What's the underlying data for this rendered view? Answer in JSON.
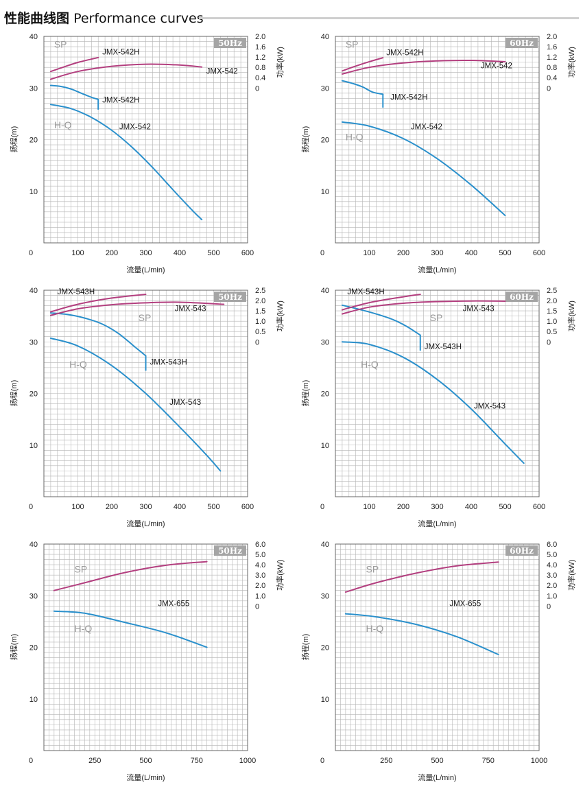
{
  "header": {
    "title_cn": "性能曲线图",
    "title_en": "Performance curves"
  },
  "colors": {
    "head": "#2a90cc",
    "power": "#b33f7f",
    "grid": "#b5b5b5",
    "frame": "#666666",
    "badge": "#a5a5a5"
  },
  "chart_data": [
    {
      "type": "line",
      "frequency": "50Hz",
      "xlabel": "流量(L/min)",
      "ylabel": "扬程(m)",
      "y2label": "功率(kW)",
      "xlim": [
        0,
        600
      ],
      "x_ticks": [
        0,
        100,
        200,
        300,
        400,
        500,
        600
      ],
      "ylim": [
        0,
        40
      ],
      "y_ticks": [
        0,
        10,
        20,
        30,
        40
      ],
      "y2_ticks": [
        "0",
        "0.4",
        "0.8",
        "1.2",
        "1.6",
        "2.0"
      ],
      "y2_per_head": 0.2,
      "sp_label": "SP",
      "hq_label": "H-Q",
      "sp_label_pos": [
        30,
        37.8
      ],
      "hq_label_pos": [
        30,
        22.2
      ],
      "series": [
        {
          "name": "JMX-542H",
          "kind": "head",
          "x": [
            20,
            50,
            80,
            110,
            140,
            160
          ],
          "y": [
            30.5,
            30.3,
            29.8,
            29.0,
            28.2,
            27.8
          ],
          "drop_to": 25.8,
          "label": "JMX-542H",
          "label_at": [
            172,
            27.2
          ]
        },
        {
          "name": "JMX-542",
          "kind": "head",
          "x": [
            20,
            80,
            140,
            200,
            260,
            320,
            380,
            440,
            465
          ],
          "y": [
            26.8,
            26.0,
            24.3,
            21.8,
            18.5,
            14.6,
            10.3,
            6.1,
            4.5
          ],
          "label": "JMX-542",
          "label_at": [
            222,
            22.0
          ]
        },
        {
          "name": "JMX-542H",
          "kind": "power",
          "x": [
            20,
            60,
            100,
            160
          ],
          "y": [
            0.64,
            0.82,
            0.99,
            1.18
          ],
          "label": "JMX-542H",
          "label_at": [
            172,
            1.3
          ]
        },
        {
          "name": "JMX-542",
          "kind": "power",
          "x": [
            20,
            100,
            200,
            300,
            400,
            465
          ],
          "y": [
            0.34,
            0.64,
            0.84,
            0.92,
            0.89,
            0.81
          ],
          "label": "JMX-542",
          "label_at": [
            478,
            0.55
          ]
        }
      ]
    },
    {
      "type": "line",
      "frequency": "60Hz",
      "xlabel": "流量(L/min)",
      "ylabel": "扬程(m)",
      "y2label": "功率(kW)",
      "xlim": [
        0,
        600
      ],
      "x_ticks": [
        0,
        100,
        200,
        300,
        400,
        500,
        600
      ],
      "ylim": [
        0,
        40
      ],
      "y_ticks": [
        0,
        10,
        20,
        30,
        40
      ],
      "y2_ticks": [
        "0",
        "0.4",
        "0.8",
        "1.2",
        "1.6",
        "2.0"
      ],
      "y2_per_head": 0.2,
      "sp_label": "SP",
      "hq_label": "H-Q",
      "sp_label_pos": [
        30,
        37.8
      ],
      "hq_label_pos": [
        30,
        19.9
      ],
      "series": [
        {
          "name": "JMX-542H",
          "kind": "head",
          "x": [
            20,
            50,
            80,
            110,
            140
          ],
          "y": [
            31.4,
            30.9,
            30.2,
            29.2,
            28.8
          ],
          "drop_to": 26.2,
          "label": "JMX-542H",
          "label_at": [
            162,
            27.7
          ]
        },
        {
          "name": "JMX-542",
          "kind": "head",
          "x": [
            20,
            100,
            200,
            300,
            400,
            500
          ],
          "y": [
            23.4,
            22.6,
            20.2,
            16.3,
            11.2,
            5.3
          ],
          "label": "JMX-542",
          "label_at": [
            222,
            22.0
          ]
        },
        {
          "name": "JMX-542H",
          "kind": "power",
          "x": [
            20,
            60,
            100,
            140
          ],
          "y": [
            0.66,
            0.85,
            1.02,
            1.17
          ],
          "label": "JMX-542H",
          "label_at": [
            150,
            1.27
          ]
        },
        {
          "name": "JMX-542",
          "kind": "power",
          "x": [
            20,
            100,
            200,
            300,
            400,
            500
          ],
          "y": [
            0.54,
            0.8,
            0.97,
            1.05,
            1.07,
            1.02
          ],
          "label": "JMX-542",
          "label_at": [
            428,
            0.76
          ]
        }
      ]
    },
    {
      "type": "line",
      "frequency": "50Hz",
      "xlabel": "流量(L/min)",
      "ylabel": "扬程(m)",
      "y2label": "功率(kW)",
      "xlim": [
        0,
        600
      ],
      "x_ticks": [
        0,
        100,
        200,
        300,
        400,
        500,
        600
      ],
      "ylim": [
        0,
        40
      ],
      "y_ticks": [
        0,
        10,
        20,
        30,
        40
      ],
      "y2_ticks": [
        "0",
        "0.5",
        "1.0",
        "1.5",
        "2.0",
        "2.5"
      ],
      "y2_per_head": 0.25,
      "sp_label": "SP",
      "hq_label": "H-Q",
      "sp_label_pos": [
        278,
        34.0
      ],
      "hq_label_pos": [
        75,
        25.0
      ],
      "series": [
        {
          "name": "JMX-543H",
          "kind": "head",
          "x": [
            20,
            70,
            120,
            170,
            220,
            270,
            300
          ],
          "y": [
            35.6,
            35.3,
            34.6,
            33.5,
            31.6,
            28.9,
            27.3
          ],
          "drop_to": 24.4,
          "label": "JMX-543H",
          "label_at": [
            312,
            25.6
          ]
        },
        {
          "name": "JMX-543",
          "kind": "head",
          "x": [
            20,
            100,
            200,
            300,
            400,
            480,
            520
          ],
          "y": [
            30.7,
            29.2,
            25.4,
            20.0,
            13.5,
            8.0,
            5.0
          ],
          "label": "JMX-543",
          "label_at": [
            370,
            17.8
          ]
        },
        {
          "name": "JMX-543H",
          "kind": "power",
          "x": [
            20,
            100,
            200,
            300
          ],
          "y": [
            1.45,
            1.82,
            2.12,
            2.3
          ],
          "label": "JMX-543H",
          "label_at": [
            40,
            2.3
          ]
        },
        {
          "name": "JMX-543",
          "kind": "power",
          "x": [
            20,
            100,
            200,
            300,
            400,
            530
          ],
          "y": [
            1.28,
            1.6,
            1.8,
            1.89,
            1.92,
            1.82
          ],
          "label": "JMX-543",
          "label_at": [
            385,
            1.48
          ]
        }
      ]
    },
    {
      "type": "line",
      "frequency": "60Hz",
      "xlabel": "流量(L/min)",
      "ylabel": "扬程(m)",
      "y2label": "功率(kW)",
      "xlim": [
        0,
        600
      ],
      "x_ticks": [
        0,
        100,
        200,
        300,
        400,
        500,
        600
      ],
      "ylim": [
        0,
        40
      ],
      "y_ticks": [
        0,
        10,
        20,
        30,
        40
      ],
      "y2_ticks": [
        "0",
        "0.5",
        "1.0",
        "1.5",
        "2.0",
        "2.5"
      ],
      "y2_per_head": 0.25,
      "sp_label": "SP",
      "hq_label": "H-Q",
      "sp_label_pos": [
        278,
        34.0
      ],
      "hq_label_pos": [
        75,
        25.0
      ],
      "series": [
        {
          "name": "JMX-543H",
          "kind": "head",
          "x": [
            20,
            70,
            120,
            170,
            210,
            250
          ],
          "y": [
            37.1,
            36.3,
            35.4,
            34.3,
            33.0,
            31.3
          ],
          "drop_to": 28.3,
          "label": "JMX-543H",
          "label_at": [
            262,
            28.6
          ]
        },
        {
          "name": "JMX-543",
          "kind": "head",
          "x": [
            20,
            100,
            200,
            300,
            400,
            500,
            555
          ],
          "y": [
            30.0,
            29.5,
            27.0,
            22.7,
            17.0,
            10.2,
            6.5
          ],
          "label": "JMX-543",
          "label_at": [
            408,
            17.1
          ]
        },
        {
          "name": "JMX-543H",
          "kind": "power",
          "x": [
            20,
            100,
            200,
            250
          ],
          "y": [
            1.55,
            1.9,
            2.18,
            2.3
          ],
          "label": "JMX-543H",
          "label_at": [
            35,
            2.3
          ]
        },
        {
          "name": "JMX-543",
          "kind": "power",
          "x": [
            20,
            100,
            200,
            300,
            400,
            500
          ],
          "y": [
            1.35,
            1.68,
            1.87,
            1.95,
            1.98,
            1.97
          ],
          "label": "JMX-543",
          "label_at": [
            375,
            1.48
          ]
        }
      ]
    },
    {
      "type": "line",
      "frequency": "50Hz",
      "xlabel": "流量(L/min)",
      "ylabel": "扬程(m)",
      "y2label": "功率(kW)",
      "xlim": [
        0,
        1000
      ],
      "x_ticks": [
        0,
        250,
        500,
        750,
        1000
      ],
      "ylim": [
        0,
        40
      ],
      "y_ticks": [
        0,
        10,
        20,
        30,
        40
      ],
      "y2_ticks": [
        "0",
        "1.0",
        "2.0",
        "3.0",
        "4.0",
        "5.0",
        "6.0"
      ],
      "y2_per_head": 0.5,
      "sp_label": "SP",
      "hq_label": "H-Q",
      "sp_label_pos": [
        150,
        34.5
      ],
      "hq_label_pos": [
        150,
        23.0
      ],
      "series": [
        {
          "name": "JMX-655",
          "kind": "head",
          "x": [
            50,
            200,
            400,
            600,
            800
          ],
          "y": [
            27.0,
            26.6,
            24.8,
            22.8,
            20.0
          ],
          "label": "JMX-655",
          "label_at": [
            560,
            28.0
          ]
        },
        {
          "name": "JMX-655",
          "kind": "power",
          "x": [
            50,
            200,
            400,
            600,
            800
          ],
          "y": [
            1.5,
            2.25,
            3.25,
            3.95,
            4.3
          ],
          "label": "",
          "label_at": [
            0,
            0
          ]
        }
      ]
    },
    {
      "type": "line",
      "frequency": "60Hz",
      "xlabel": "流量(L/min)",
      "ylabel": "扬程(m)",
      "y2label": "功率(kW)",
      "xlim": [
        0,
        1000
      ],
      "x_ticks": [
        0,
        250,
        500,
        750,
        1000
      ],
      "ylim": [
        0,
        40
      ],
      "y_ticks": [
        0,
        10,
        20,
        30,
        40
      ],
      "y2_ticks": [
        "0",
        "1.0",
        "2.0",
        "3.0",
        "4.0",
        "5.0",
        "6.0"
      ],
      "y2_per_head": 0.5,
      "sp_label": "SP",
      "hq_label": "H-Q",
      "sp_label_pos": [
        150,
        34.5
      ],
      "hq_label_pos": [
        150,
        23.0
      ],
      "series": [
        {
          "name": "JMX-655",
          "kind": "head",
          "x": [
            50,
            200,
            400,
            600,
            800
          ],
          "y": [
            26.5,
            25.9,
            24.4,
            22.0,
            18.6
          ],
          "label": "JMX-655",
          "label_at": [
            560,
            28.0
          ]
        },
        {
          "name": "JMX-655",
          "kind": "power",
          "x": [
            50,
            200,
            400,
            600,
            800
          ],
          "y": [
            1.35,
            2.25,
            3.2,
            3.9,
            4.25
          ],
          "label": "",
          "label_at": [
            0,
            0
          ]
        }
      ]
    }
  ]
}
